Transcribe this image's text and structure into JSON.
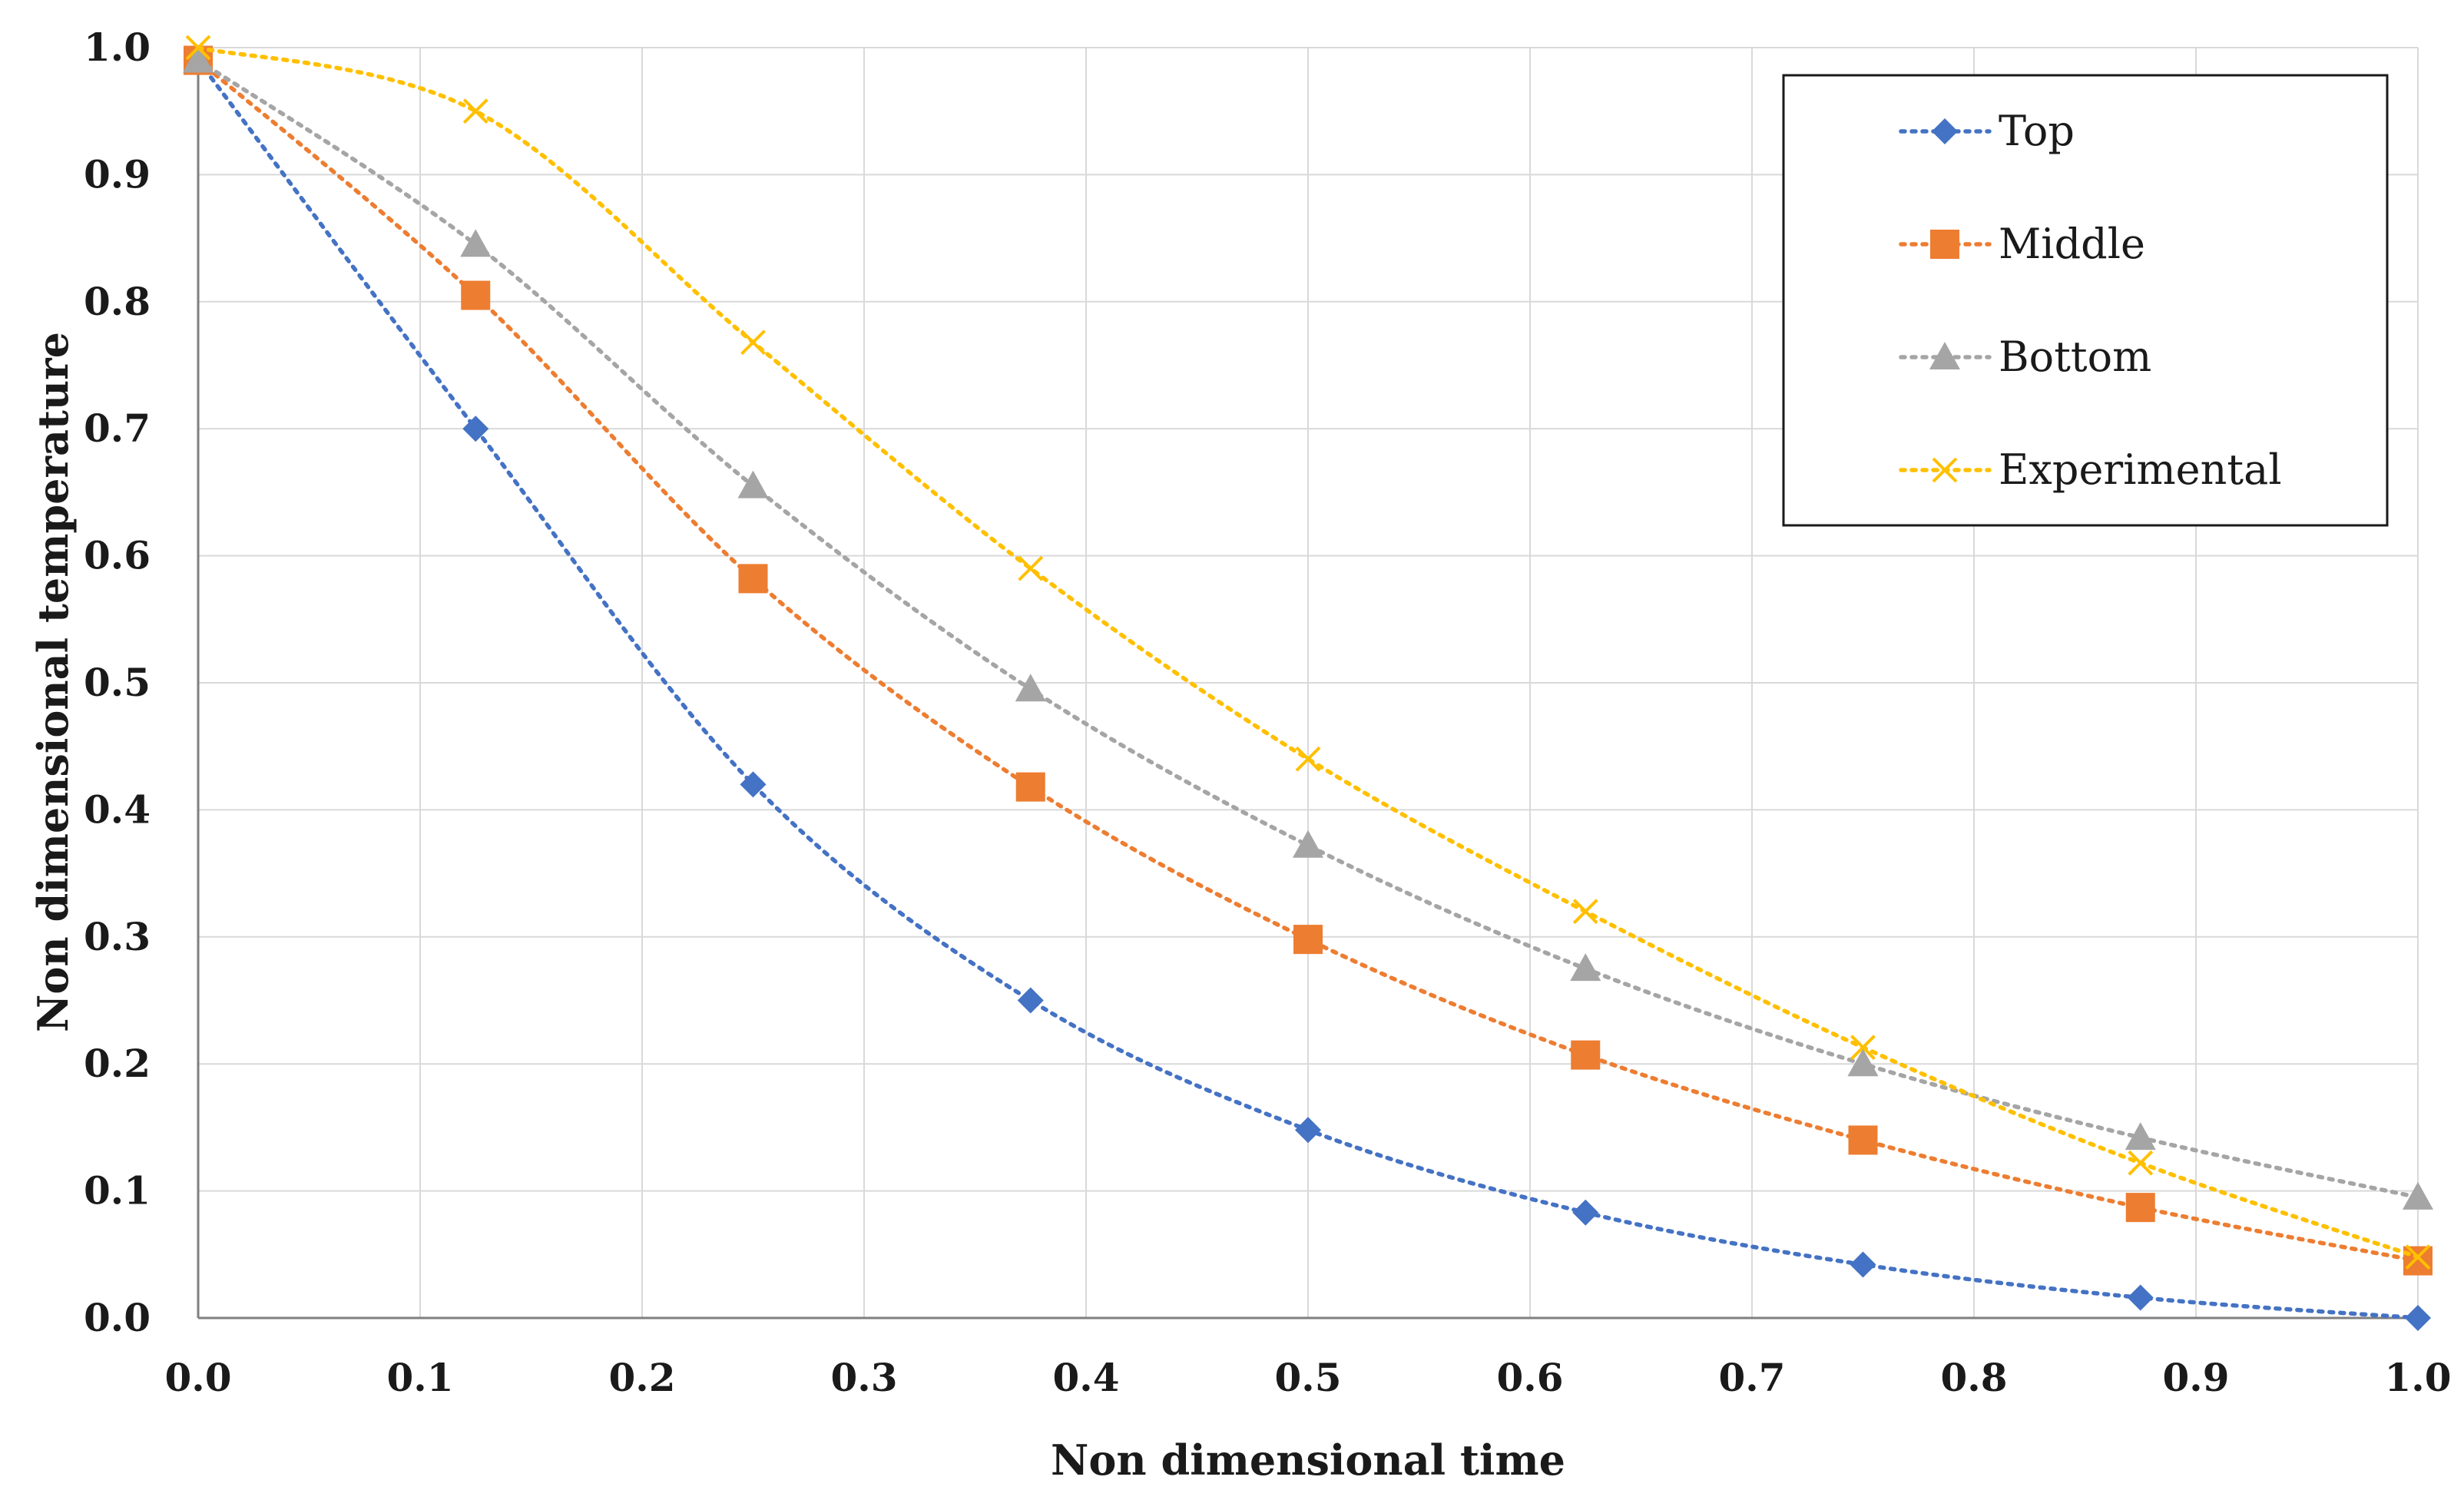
{
  "chart_data": {
    "type": "line",
    "title": "",
    "xlabel": "Non dimensional time",
    "ylabel": "Non dimensional temperature",
    "xlim": [
      0,
      1
    ],
    "ylim": [
      0,
      1
    ],
    "xticks": [
      0,
      0.1,
      0.2,
      0.3,
      0.4,
      0.5,
      0.6,
      0.7,
      0.8,
      0.9,
      1.0
    ],
    "yticks": [
      0,
      0.1,
      0.2,
      0.3,
      0.4,
      0.5,
      0.6,
      0.7,
      0.8,
      0.9,
      1.0
    ],
    "xtick_labels": [
      "0.0",
      "0.1",
      "0.2",
      "0.3",
      "0.4",
      "0.5",
      "0.6",
      "0.7",
      "0.8",
      "0.9",
      "1.0"
    ],
    "ytick_labels": [
      "0.0",
      "0.1",
      "0.2",
      "0.3",
      "0.4",
      "0.5",
      "0.6",
      "0.7",
      "0.8",
      "0.9",
      "1.0"
    ],
    "grid": true,
    "legend_position": "top-right",
    "x": [
      0,
      0.125,
      0.25,
      0.375,
      0.5,
      0.625,
      0.75,
      0.875,
      1.0
    ],
    "series": [
      {
        "name": "Top",
        "marker": "diamond",
        "color": "#4472C4",
        "values": [
          0.99,
          0.7,
          0.42,
          0.25,
          0.148,
          0.083,
          0.042,
          0.016,
          0.0
        ]
      },
      {
        "name": "Middle",
        "marker": "square",
        "color": "#ED7D31",
        "values": [
          0.99,
          0.805,
          0.582,
          0.418,
          0.298,
          0.207,
          0.14,
          0.087,
          0.045
        ]
      },
      {
        "name": "Bottom",
        "marker": "triangle",
        "color": "#A5A5A5",
        "values": [
          0.99,
          0.845,
          0.655,
          0.495,
          0.372,
          0.275,
          0.2,
          0.142,
          0.095
        ]
      },
      {
        "name": "Experimental",
        "marker": "x",
        "color": "#FFC000",
        "values": [
          1.0,
          0.95,
          0.768,
          0.59,
          0.44,
          0.32,
          0.213,
          0.122,
          0.048
        ]
      }
    ]
  }
}
